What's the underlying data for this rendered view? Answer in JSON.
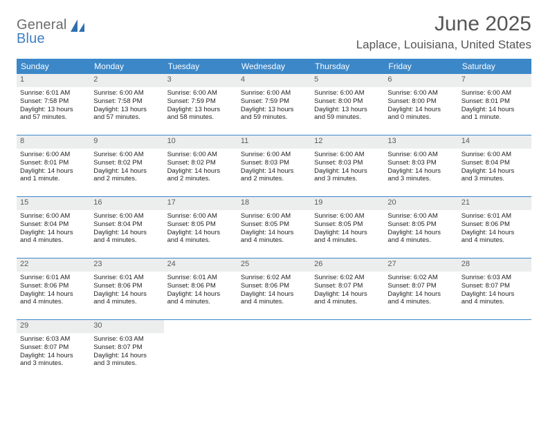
{
  "logo": {
    "text_top": "General",
    "text_bottom": "Blue",
    "gray": "#6b6b6b",
    "blue": "#3e7fc1"
  },
  "title": "June 2025",
  "location": "Laplace, Louisiana, United States",
  "header_bg": "#3b87c8",
  "date_bar_bg": "#eceded",
  "weekdays": [
    "Sunday",
    "Monday",
    "Tuesday",
    "Wednesday",
    "Thursday",
    "Friday",
    "Saturday"
  ],
  "weeks": [
    [
      {
        "date": "1",
        "sunrise": "Sunrise: 6:01 AM",
        "sunset": "Sunset: 7:58 PM",
        "daylight1": "Daylight: 13 hours",
        "daylight2": "and 57 minutes."
      },
      {
        "date": "2",
        "sunrise": "Sunrise: 6:00 AM",
        "sunset": "Sunset: 7:58 PM",
        "daylight1": "Daylight: 13 hours",
        "daylight2": "and 57 minutes."
      },
      {
        "date": "3",
        "sunrise": "Sunrise: 6:00 AM",
        "sunset": "Sunset: 7:59 PM",
        "daylight1": "Daylight: 13 hours",
        "daylight2": "and 58 minutes."
      },
      {
        "date": "4",
        "sunrise": "Sunrise: 6:00 AM",
        "sunset": "Sunset: 7:59 PM",
        "daylight1": "Daylight: 13 hours",
        "daylight2": "and 59 minutes."
      },
      {
        "date": "5",
        "sunrise": "Sunrise: 6:00 AM",
        "sunset": "Sunset: 8:00 PM",
        "daylight1": "Daylight: 13 hours",
        "daylight2": "and 59 minutes."
      },
      {
        "date": "6",
        "sunrise": "Sunrise: 6:00 AM",
        "sunset": "Sunset: 8:00 PM",
        "daylight1": "Daylight: 14 hours",
        "daylight2": "and 0 minutes."
      },
      {
        "date": "7",
        "sunrise": "Sunrise: 6:00 AM",
        "sunset": "Sunset: 8:01 PM",
        "daylight1": "Daylight: 14 hours",
        "daylight2": "and 1 minute."
      }
    ],
    [
      {
        "date": "8",
        "sunrise": "Sunrise: 6:00 AM",
        "sunset": "Sunset: 8:01 PM",
        "daylight1": "Daylight: 14 hours",
        "daylight2": "and 1 minute."
      },
      {
        "date": "9",
        "sunrise": "Sunrise: 6:00 AM",
        "sunset": "Sunset: 8:02 PM",
        "daylight1": "Daylight: 14 hours",
        "daylight2": "and 2 minutes."
      },
      {
        "date": "10",
        "sunrise": "Sunrise: 6:00 AM",
        "sunset": "Sunset: 8:02 PM",
        "daylight1": "Daylight: 14 hours",
        "daylight2": "and 2 minutes."
      },
      {
        "date": "11",
        "sunrise": "Sunrise: 6:00 AM",
        "sunset": "Sunset: 8:03 PM",
        "daylight1": "Daylight: 14 hours",
        "daylight2": "and 2 minutes."
      },
      {
        "date": "12",
        "sunrise": "Sunrise: 6:00 AM",
        "sunset": "Sunset: 8:03 PM",
        "daylight1": "Daylight: 14 hours",
        "daylight2": "and 3 minutes."
      },
      {
        "date": "13",
        "sunrise": "Sunrise: 6:00 AM",
        "sunset": "Sunset: 8:03 PM",
        "daylight1": "Daylight: 14 hours",
        "daylight2": "and 3 minutes."
      },
      {
        "date": "14",
        "sunrise": "Sunrise: 6:00 AM",
        "sunset": "Sunset: 8:04 PM",
        "daylight1": "Daylight: 14 hours",
        "daylight2": "and 3 minutes."
      }
    ],
    [
      {
        "date": "15",
        "sunrise": "Sunrise: 6:00 AM",
        "sunset": "Sunset: 8:04 PM",
        "daylight1": "Daylight: 14 hours",
        "daylight2": "and 4 minutes."
      },
      {
        "date": "16",
        "sunrise": "Sunrise: 6:00 AM",
        "sunset": "Sunset: 8:04 PM",
        "daylight1": "Daylight: 14 hours",
        "daylight2": "and 4 minutes."
      },
      {
        "date": "17",
        "sunrise": "Sunrise: 6:00 AM",
        "sunset": "Sunset: 8:05 PM",
        "daylight1": "Daylight: 14 hours",
        "daylight2": "and 4 minutes."
      },
      {
        "date": "18",
        "sunrise": "Sunrise: 6:00 AM",
        "sunset": "Sunset: 8:05 PM",
        "daylight1": "Daylight: 14 hours",
        "daylight2": "and 4 minutes."
      },
      {
        "date": "19",
        "sunrise": "Sunrise: 6:00 AM",
        "sunset": "Sunset: 8:05 PM",
        "daylight1": "Daylight: 14 hours",
        "daylight2": "and 4 minutes."
      },
      {
        "date": "20",
        "sunrise": "Sunrise: 6:00 AM",
        "sunset": "Sunset: 8:05 PM",
        "daylight1": "Daylight: 14 hours",
        "daylight2": "and 4 minutes."
      },
      {
        "date": "21",
        "sunrise": "Sunrise: 6:01 AM",
        "sunset": "Sunset: 8:06 PM",
        "daylight1": "Daylight: 14 hours",
        "daylight2": "and 4 minutes."
      }
    ],
    [
      {
        "date": "22",
        "sunrise": "Sunrise: 6:01 AM",
        "sunset": "Sunset: 8:06 PM",
        "daylight1": "Daylight: 14 hours",
        "daylight2": "and 4 minutes."
      },
      {
        "date": "23",
        "sunrise": "Sunrise: 6:01 AM",
        "sunset": "Sunset: 8:06 PM",
        "daylight1": "Daylight: 14 hours",
        "daylight2": "and 4 minutes."
      },
      {
        "date": "24",
        "sunrise": "Sunrise: 6:01 AM",
        "sunset": "Sunset: 8:06 PM",
        "daylight1": "Daylight: 14 hours",
        "daylight2": "and 4 minutes."
      },
      {
        "date": "25",
        "sunrise": "Sunrise: 6:02 AM",
        "sunset": "Sunset: 8:06 PM",
        "daylight1": "Daylight: 14 hours",
        "daylight2": "and 4 minutes."
      },
      {
        "date": "26",
        "sunrise": "Sunrise: 6:02 AM",
        "sunset": "Sunset: 8:07 PM",
        "daylight1": "Daylight: 14 hours",
        "daylight2": "and 4 minutes."
      },
      {
        "date": "27",
        "sunrise": "Sunrise: 6:02 AM",
        "sunset": "Sunset: 8:07 PM",
        "daylight1": "Daylight: 14 hours",
        "daylight2": "and 4 minutes."
      },
      {
        "date": "28",
        "sunrise": "Sunrise: 6:03 AM",
        "sunset": "Sunset: 8:07 PM",
        "daylight1": "Daylight: 14 hours",
        "daylight2": "and 4 minutes."
      }
    ],
    [
      {
        "date": "29",
        "sunrise": "Sunrise: 6:03 AM",
        "sunset": "Sunset: 8:07 PM",
        "daylight1": "Daylight: 14 hours",
        "daylight2": "and 3 minutes."
      },
      {
        "date": "30",
        "sunrise": "Sunrise: 6:03 AM",
        "sunset": "Sunset: 8:07 PM",
        "daylight1": "Daylight: 14 hours",
        "daylight2": "and 3 minutes."
      },
      null,
      null,
      null,
      null,
      null
    ]
  ]
}
